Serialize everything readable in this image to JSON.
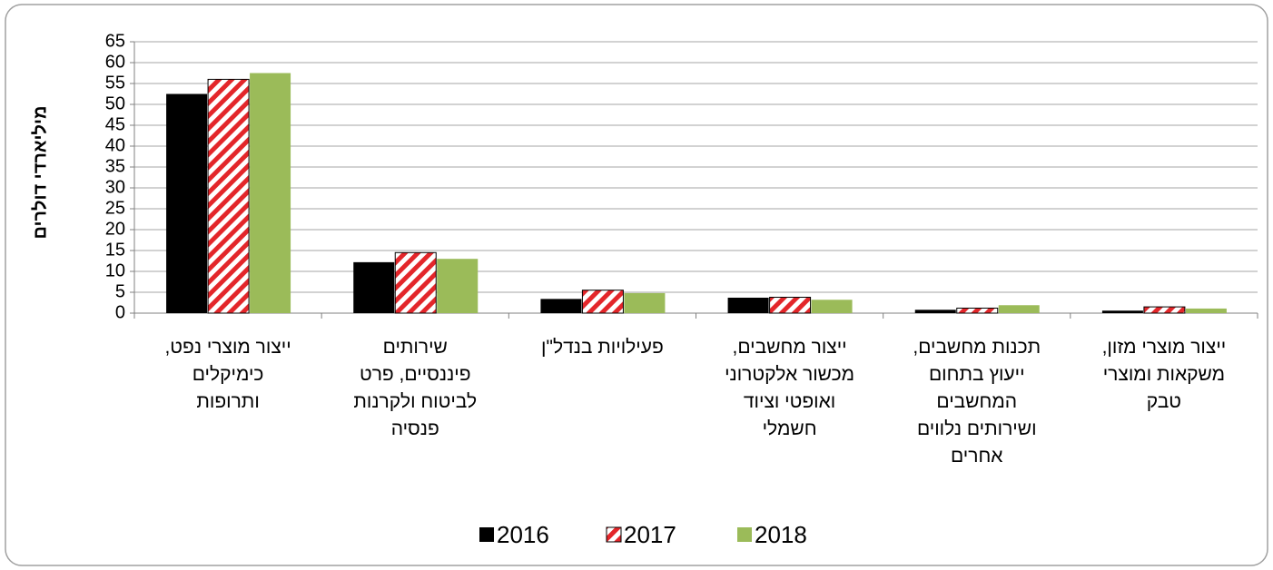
{
  "chart_data": {
    "type": "bar",
    "y_label": "מיליארדי דולרים",
    "categories": [
      "ייצור מוצרי נפט,\nכימיקלים\nותרופות",
      "שירותים\nפיננסיים, פרט\nלביטוח ולקרנות\nפנסיה",
      "פעילויות בנדל\"ן",
      "ייצור מחשבים,\nמכשור אלקטרוני\nואופטי וציוד\nחשמלי",
      "תכנות מחשבים,\nייעוץ בתחום\nהמחשבים\nושירותים נלווים\nאחרים",
      "ייצור מוצרי מזון,\nמשקאות ומוצרי\nטבק"
    ],
    "series": [
      {
        "name": "2016",
        "color": "#000000",
        "values": [
          52.5,
          12.2,
          3.4,
          3.7,
          0.8,
          0.6
        ]
      },
      {
        "name": "2017",
        "color": "#e3262a",
        "pattern": "diagonal-stripes",
        "values": [
          56,
          14.5,
          5.5,
          3.8,
          1.2,
          1.5
        ]
      },
      {
        "name": "2018",
        "color": "#9bbb59",
        "values": [
          57.5,
          13,
          4.8,
          3.2,
          1.9,
          1.1
        ]
      }
    ],
    "ylim": [
      0,
      65
    ],
    "yticks": [
      0,
      5,
      10,
      15,
      20,
      25,
      30,
      35,
      40,
      45,
      50,
      55,
      60,
      65
    ],
    "grid": true,
    "legend": "bottom"
  }
}
